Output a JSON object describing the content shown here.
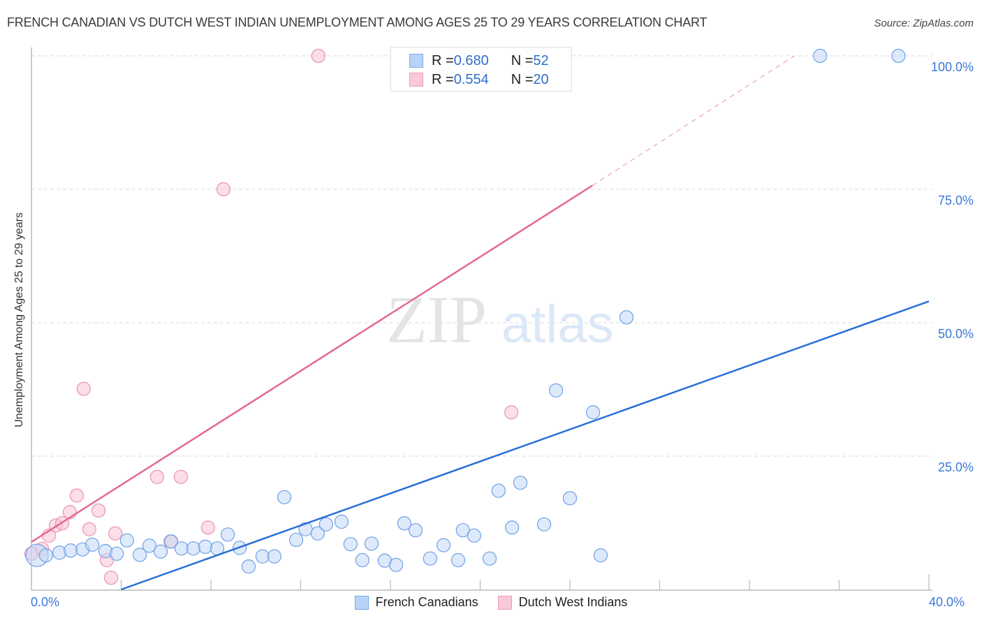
{
  "header": {
    "title": "FRENCH CANADIAN VS DUTCH WEST INDIAN UNEMPLOYMENT AMONG AGES 25 TO 29 YEARS CORRELATION CHART",
    "source": "Source: ZipAtlas.com"
  },
  "watermark": {
    "zip": "ZIP",
    "atlas": "atlas"
  },
  "legend_top": {
    "rows": [
      {
        "r_label": "R = ",
        "r_value": "0.680",
        "n_label": "N = ",
        "n_value": "52",
        "color": "#b7d3f6"
      },
      {
        "r_label": "R = ",
        "r_value": "0.554",
        "n_label": "N = ",
        "n_value": "20",
        "color": "#f9c9d8"
      }
    ]
  },
  "legend_bottom": {
    "items": [
      {
        "label": "French Canadians",
        "color": "#b7d3f6"
      },
      {
        "label": "Dutch West Indians",
        "color": "#f9c9d8"
      }
    ]
  },
  "axes": {
    "ylabel": "Unemployment Among Ages 25 to 29 years",
    "yticks": [
      "100.0%",
      "75.0%",
      "50.0%",
      "25.0%"
    ],
    "xticks": [
      "0.0%",
      "40.0%"
    ]
  },
  "chart_data": {
    "type": "scatter",
    "title": "FRENCH CANADIAN VS DUTCH WEST INDIAN UNEMPLOYMENT AMONG AGES 25 TO 29 YEARS CORRELATION CHART",
    "xlabel": "",
    "ylabel": "Unemployment Among Ages 25 to 29 years",
    "xlim": [
      0,
      40
    ],
    "ylim": [
      0,
      100
    ],
    "x_tick_labels": [
      "0.0%",
      "40.0%"
    ],
    "y_tick_labels": [
      "25.0%",
      "50.0%",
      "75.0%",
      "100.0%"
    ],
    "grid": "horizontal dashed",
    "legend_position": "top-center and bottom",
    "series": [
      {
        "name": "French Canadians",
        "color": "#6fa0e6",
        "R": 0.68,
        "N": 52,
        "trendline": {
          "x": [
            4.0,
            40.0
          ],
          "y": [
            0.0,
            54.0
          ]
        },
        "points": [
          [
            0.25,
            6.4
          ],
          [
            0.65,
            6.4
          ],
          [
            1.25,
            6.9
          ],
          [
            1.75,
            7.3
          ],
          [
            2.28,
            7.5
          ],
          [
            2.71,
            8.4
          ],
          [
            3.3,
            7.2
          ],
          [
            3.8,
            6.7
          ],
          [
            4.26,
            9.2
          ],
          [
            4.83,
            6.5
          ],
          [
            5.26,
            8.2
          ],
          [
            5.76,
            7.1
          ],
          [
            6.23,
            9.0
          ],
          [
            6.69,
            7.7
          ],
          [
            7.22,
            7.7
          ],
          [
            7.75,
            8.0
          ],
          [
            8.28,
            7.7
          ],
          [
            8.75,
            10.3
          ],
          [
            9.28,
            7.8
          ],
          [
            9.68,
            4.3
          ],
          [
            10.3,
            6.2
          ],
          [
            10.83,
            6.2
          ],
          [
            11.27,
            17.3
          ],
          [
            11.8,
            9.3
          ],
          [
            12.22,
            11.3
          ],
          [
            12.76,
            10.5
          ],
          [
            13.13,
            12.2
          ],
          [
            13.82,
            12.7
          ],
          [
            14.22,
            8.5
          ],
          [
            14.75,
            5.5
          ],
          [
            15.16,
            8.6
          ],
          [
            15.75,
            5.4
          ],
          [
            16.25,
            4.6
          ],
          [
            16.62,
            12.4
          ],
          [
            17.12,
            11.1
          ],
          [
            17.77,
            5.8
          ],
          [
            18.37,
            8.3
          ],
          [
            19.02,
            5.5
          ],
          [
            19.23,
            11.1
          ],
          [
            19.73,
            10.1
          ],
          [
            20.42,
            5.8
          ],
          [
            20.82,
            18.5
          ],
          [
            21.42,
            11.6
          ],
          [
            21.79,
            20.0
          ],
          [
            22.85,
            12.2
          ],
          [
            23.38,
            37.3
          ],
          [
            24.0,
            17.1
          ],
          [
            25.03,
            33.2
          ],
          [
            25.37,
            6.4
          ],
          [
            26.52,
            51.0
          ],
          [
            35.15,
            100.0
          ],
          [
            38.64,
            100.0
          ]
        ]
      },
      {
        "name": "Dutch West Indians",
        "color": "#ee9ab5",
        "R": 0.554,
        "N": 20,
        "trendline": {
          "x": [
            0.0,
            25.0
          ],
          "y": [
            8.9,
            75.7
          ],
          "dashed_extension_to": [
            34.0,
            100.0
          ]
        },
        "points": [
          [
            12.79,
            100.0
          ],
          [
            8.56,
            75.0
          ],
          [
            2.33,
            37.6
          ],
          [
            21.39,
            33.2
          ],
          [
            5.6,
            21.1
          ],
          [
            6.66,
            21.1
          ],
          [
            2.02,
            17.6
          ],
          [
            2.99,
            14.8
          ],
          [
            1.71,
            14.5
          ],
          [
            2.58,
            11.3
          ],
          [
            1.09,
            12.0
          ],
          [
            1.37,
            12.4
          ],
          [
            0.78,
            10.1
          ],
          [
            0.47,
            7.6
          ],
          [
            7.87,
            11.6
          ],
          [
            6.2,
            9.0
          ],
          [
            3.74,
            10.5
          ],
          [
            3.36,
            5.5
          ],
          [
            3.55,
            2.2
          ],
          [
            0.0,
            6.7
          ]
        ]
      }
    ]
  }
}
